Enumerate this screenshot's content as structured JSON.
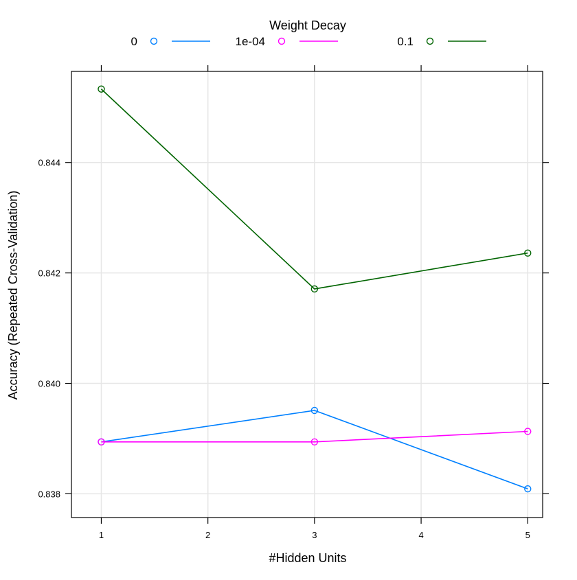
{
  "chart_data": {
    "type": "line",
    "legend": {
      "title": "Weight Decay",
      "placement": "top"
    },
    "xlabel": "#Hidden Units",
    "ylabel": "Accuracy (Repeated Cross-Validation)",
    "x": [
      1,
      3,
      5
    ],
    "x_ticks": [
      1,
      2,
      3,
      4,
      5
    ],
    "x_tick_labels": [
      "1",
      "2",
      "3",
      "4",
      "5"
    ],
    "y_ticks": [
      0.838,
      0.84,
      0.842,
      0.844
    ],
    "y_tick_labels": [
      "0.838",
      "0.840",
      "0.842",
      "0.844"
    ],
    "xlim": [
      0.72,
      5.14
    ],
    "ylim": [
      0.83757,
      0.84565
    ],
    "grid": true,
    "series": [
      {
        "name": "0",
        "color": "#0080ff",
        "values": [
          0.83894,
          0.83951,
          0.83809
        ]
      },
      {
        "name": "1e-04",
        "color": "#ff00ff",
        "values": [
          0.83894,
          0.83894,
          0.83913
        ]
      },
      {
        "name": "0.1",
        "color": "#006400",
        "values": [
          0.84533,
          0.84171,
          0.84236
        ]
      }
    ]
  }
}
